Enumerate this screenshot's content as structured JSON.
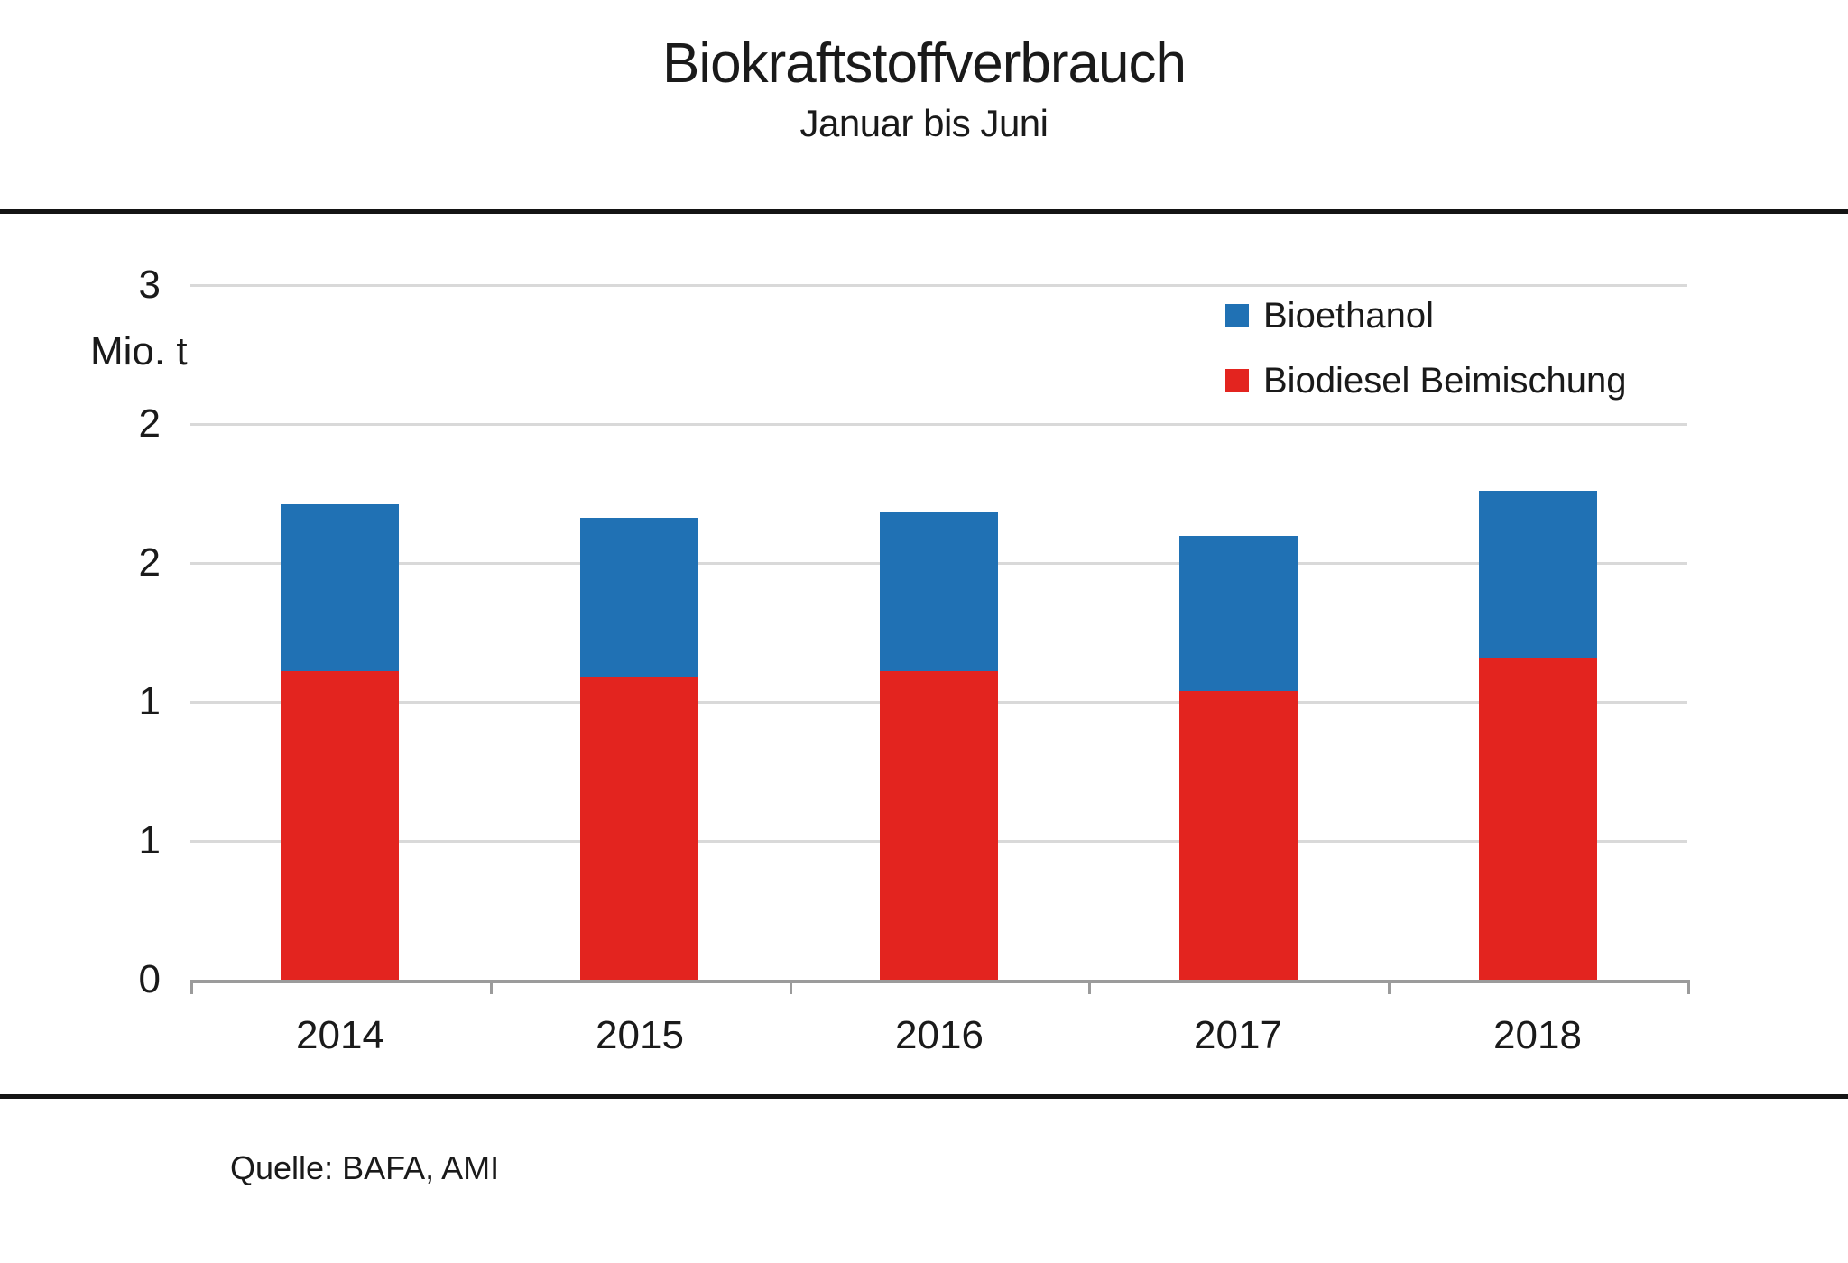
{
  "source": "Quelle: BAFA, AMI",
  "chart_data": {
    "type": "bar",
    "stacked": true,
    "title": "Biokraftstoffverbrauch",
    "subtitle": "Januar bis Juni",
    "categories": [
      "2014",
      "2015",
      "2016",
      "2017",
      "2018"
    ],
    "series": [
      {
        "name": "Bioethanol",
        "color": "#2071B4",
        "values": [
          0.6,
          0.57,
          0.57,
          0.56,
          0.6
        ]
      },
      {
        "name": "Biodiesel Beimischung",
        "color": "#E3241F",
        "values": [
          1.11,
          1.09,
          1.11,
          1.04,
          1.16
        ]
      }
    ],
    "stack_order_bottom_to_top": [
      "Biodiesel Beimischung",
      "Bioethanol"
    ],
    "xlabel": "",
    "ylabel": "Mio. t",
    "ylim": [
      0,
      2.5
    ],
    "ytick_interval": 0.5,
    "yticks": [
      {
        "label": "3",
        "value": 2.5
      },
      {
        "label": "2",
        "value": 2.0
      },
      {
        "label": "2",
        "value": 1.5
      },
      {
        "label": "1",
        "value": 1.0
      },
      {
        "label": "1",
        "value": 0.5
      },
      {
        "label": "0",
        "value": 0.0
      }
    ],
    "grid": true,
    "legend_position": "upper right"
  }
}
